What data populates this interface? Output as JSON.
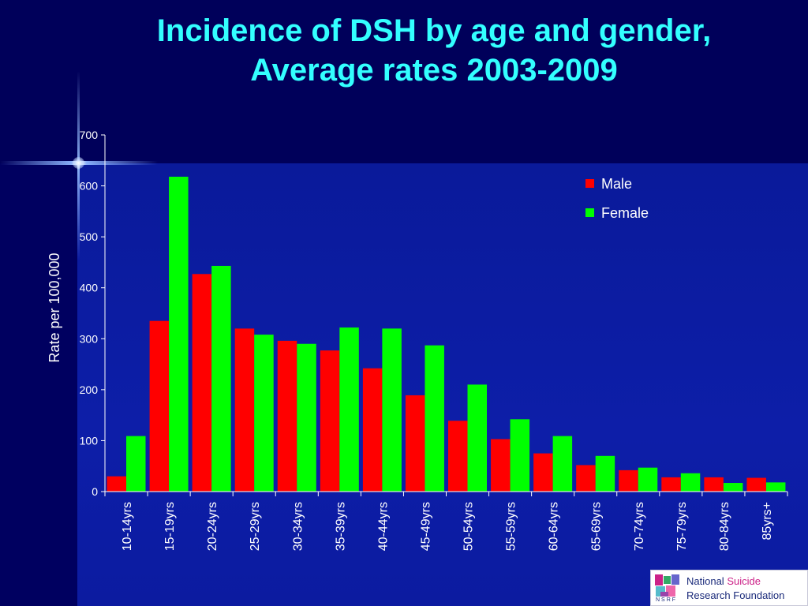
{
  "title_line1": "Incidence of DSH by age and gender,",
  "title_line2": "Average rates 2003-2009",
  "logo": {
    "line1_a": "National ",
    "line1_b": "Suicide",
    "line2_a": "Research ",
    "line2_b": "Foundation",
    "abbr": "NSRF"
  },
  "colors": {
    "male": "#ff0000",
    "female": "#00ff00",
    "title": "#33ffff",
    "axis_text": "#ffffff"
  },
  "chart_data": {
    "type": "bar",
    "title": "Incidence of DSH by age and gender, Average rates 2003-2009",
    "xlabel": "",
    "ylabel": "Rate per 100,000",
    "ylim": [
      0,
      700
    ],
    "yticks": [
      0,
      100,
      200,
      300,
      400,
      500,
      600,
      700
    ],
    "grid": false,
    "legend_position": "top-right",
    "categories": [
      "10-14yrs",
      "15-19yrs",
      "20-24yrs",
      "25-29yrs",
      "30-34yrs",
      "35-39yrs",
      "40-44yrs",
      "45-49yrs",
      "50-54yrs",
      "55-59yrs",
      "60-64yrs",
      "65-69yrs",
      "70-74yrs",
      "75-79yrs",
      "80-84yrs",
      "85yrs+"
    ],
    "series": [
      {
        "name": "Male",
        "values": [
          30,
          335,
          427,
          320,
          296,
          277,
          242,
          189,
          139,
          103,
          75,
          52,
          42,
          28,
          28,
          27
        ]
      },
      {
        "name": "Female",
        "values": [
          109,
          618,
          443,
          308,
          290,
          322,
          320,
          287,
          210,
          142,
          109,
          70,
          47,
          36,
          17,
          18
        ]
      }
    ]
  }
}
